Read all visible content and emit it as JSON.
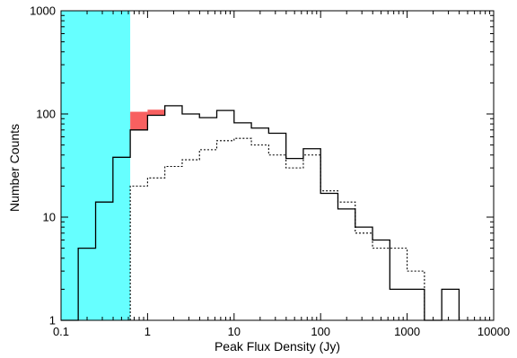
{
  "chart_data": {
    "type": "histogram",
    "xlabel": "Peak Flux Density (Jy)",
    "ylabel": "Number Counts",
    "xscale": "log",
    "yscale": "log",
    "xlim": [
      0.1,
      10000
    ],
    "ylim": [
      1,
      1000
    ],
    "x_ticks": [
      {
        "value": 0.1,
        "label": "0.1"
      },
      {
        "value": 1,
        "label": "1"
      },
      {
        "value": 10,
        "label": "10"
      },
      {
        "value": 100,
        "label": "100"
      },
      {
        "value": 1000,
        "label": "1000"
      },
      {
        "value": 10000,
        "label": "10000"
      }
    ],
    "y_ticks": [
      {
        "value": 1,
        "label": "1"
      },
      {
        "value": 10,
        "label": "10"
      },
      {
        "value": 100,
        "label": "100"
      },
      {
        "value": 1000,
        "label": "1000"
      }
    ],
    "shaded_region": {
      "x": [
        0.1,
        0.63
      ],
      "color": "#66ffff"
    },
    "bin_edges": [
      0.1,
      0.158,
      0.251,
      0.398,
      0.631,
      1.0,
      1.585,
      2.512,
      3.981,
      6.31,
      10.0,
      15.85,
      25.12,
      39.81,
      63.1,
      100.0,
      158.5,
      251.2,
      398.1,
      631.0,
      1000.0,
      1585.0,
      2512.0,
      3981.0
    ],
    "series": [
      {
        "style": "solid",
        "color": "#000000",
        "values": [
          1,
          5,
          14,
          38,
          70,
          97,
          120,
          100,
          92,
          108,
          82,
          73,
          65,
          37,
          46,
          17,
          12,
          8,
          6,
          2,
          2,
          1,
          2
        ]
      },
      {
        "style": "dotted",
        "color": "#000000",
        "values": [
          null,
          null,
          null,
          null,
          20,
          24,
          31,
          36,
          45,
          55,
          58,
          50,
          40,
          30,
          40,
          18,
          14,
          7,
          5,
          5,
          3,
          null,
          null
        ]
      }
    ],
    "highlight_bars": {
      "color": "#f86060",
      "bins": [
        {
          "x": [
            0.631,
            1.0
          ],
          "y": [
            70,
            105
          ]
        },
        {
          "x": [
            1.0,
            1.585
          ],
          "y": [
            97,
            110
          ]
        }
      ]
    }
  }
}
